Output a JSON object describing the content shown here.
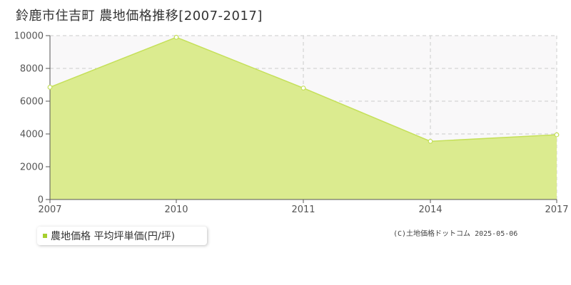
{
  "title": "鈴鹿市住吉町 農地価格推移[2007-2017]",
  "legend": {
    "label": "農地価格 平均坪単価(円/坪)"
  },
  "copyright": "(C)土地価格ドットコム 2025-05-06",
  "colors": {
    "area_fill": "#dbeb8f",
    "line": "#c5e05a",
    "legend_swatch": "#a6cf2e",
    "plot_bg": "#f9f8f9",
    "grid": "#cccccc",
    "axis": "#555555"
  },
  "chart_data": {
    "type": "area",
    "categories": [
      "2007",
      "2010",
      "2011",
      "2014",
      "2017"
    ],
    "series": [
      {
        "name": "農地価格 平均坪単価(円/坪)",
        "values": [
          6850,
          9900,
          6800,
          3550,
          3950
        ]
      }
    ],
    "y_ticks": [
      "0",
      "2000",
      "4000",
      "6000",
      "8000",
      "10000"
    ],
    "ylim": [
      0,
      10000
    ],
    "grid": true,
    "legend_position": "bottom-left"
  }
}
